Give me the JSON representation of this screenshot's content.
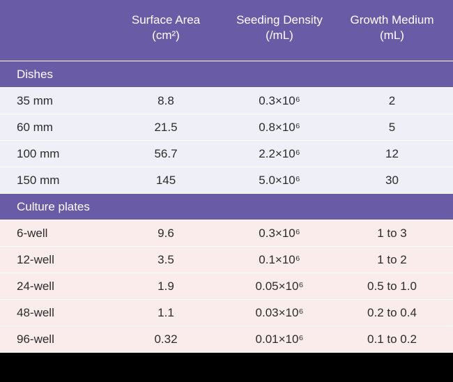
{
  "header": {
    "surface_area": [
      "Surface Area",
      "(cm²)"
    ],
    "seeding_density": [
      "Seeding Density",
      "(/mL)"
    ],
    "growth_medium": [
      "Growth Medium",
      "(mL)"
    ]
  },
  "sections": {
    "dishes": {
      "label": "Dishes",
      "rows": [
        [
          "35 mm",
          "8.8",
          "0.3×10⁶",
          "2"
        ],
        [
          "60 mm",
          "21.5",
          "0.8×10⁶",
          "5"
        ],
        [
          "100 mm",
          "56.7",
          "2.2×10⁶",
          "12"
        ],
        [
          "150 mm",
          "145",
          "5.0×10⁶",
          "30"
        ]
      ]
    },
    "plates": {
      "label": "Culture plates",
      "rows": [
        [
          "6-well",
          "9.6",
          "0.3×10⁶",
          "1 to 3"
        ],
        [
          "12-well",
          "3.5",
          "0.1×10⁶",
          "1 to 2"
        ],
        [
          "24-well",
          "1.9",
          "0.05×10⁶",
          "0.5 to 1.0"
        ],
        [
          "48-well",
          "1.1",
          "0.03×10⁶",
          "0.2 to 0.4"
        ],
        [
          "96-well",
          "0.32",
          "0.01×10⁶",
          "0.1 to 0.2"
        ]
      ]
    }
  }
}
